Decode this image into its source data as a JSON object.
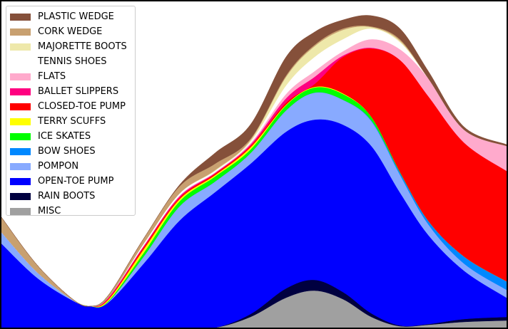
{
  "chart_data": {
    "type": "area",
    "stacked": true,
    "title": "",
    "xlabel": "",
    "ylabel": "",
    "axes_visible": false,
    "grid": false,
    "legend_position": "top-left",
    "xlim": [
      0,
      71
    ],
    "ylim": [
      0,
      458
    ],
    "x": [
      0,
      5,
      10,
      12.5,
      15,
      20,
      25,
      30,
      35,
      40,
      44,
      48,
      52,
      56,
      60,
      65,
      71
    ],
    "series": [
      {
        "name": "MISC",
        "color": "#a0a0a0",
        "values": [
          0,
          0,
          0,
          0,
          0,
          0,
          0,
          0,
          15,
          42,
          52,
          40,
          15,
          2,
          4,
          8,
          10
        ]
      },
      {
        "name": "RAIN BOOTS",
        "color": "#000040",
        "values": [
          0,
          0,
          0,
          0,
          0,
          0,
          0,
          0,
          4,
          13,
          15,
          10,
          5,
          1,
          1,
          4,
          5
        ]
      },
      {
        "name": "OPEN-TOE PUMP",
        "color": "#0000ff",
        "values": [
          118,
          70,
          38,
          30,
          35,
          90,
          150,
          190,
          211,
          220,
          225,
          235,
          235,
          187,
          125,
          68,
          27
        ]
      },
      {
        "name": "POMPON",
        "color": "#88aaff",
        "values": [
          16,
          8,
          1,
          0,
          1,
          10,
          20,
          15,
          15,
          30,
          38,
          35,
          35,
          25,
          15,
          10,
          11
        ]
      },
      {
        "name": "BOW SHOES",
        "color": "#0088ff",
        "values": [
          0,
          0,
          0,
          0,
          0,
          0,
          0,
          0,
          0,
          0,
          0,
          0,
          1,
          3,
          5,
          10,
          12
        ]
      },
      {
        "name": "ICE SKATES",
        "color": "#00ff00",
        "values": [
          0,
          0,
          0,
          0,
          1,
          5,
          7,
          7,
          5,
          7,
          7,
          8,
          5,
          1,
          0,
          0,
          0
        ]
      },
      {
        "name": "TERRY SCUFFS",
        "color": "#ffff00",
        "values": [
          0,
          0,
          0,
          0,
          2,
          5,
          3,
          2,
          3,
          1,
          1,
          1,
          0,
          0,
          0,
          0,
          0
        ]
      },
      {
        "name": "CLOSED-TOE PUMP",
        "color": "#ff0000",
        "values": [
          0,
          0,
          0,
          0,
          1,
          3,
          2,
          2,
          2,
          3,
          4,
          51,
          96,
          157,
          175,
          160,
          155
        ]
      },
      {
        "name": "BALLET SLIPPERS",
        "color": "#ff0080",
        "values": [
          0,
          0,
          0,
          0,
          2,
          2,
          2,
          1,
          2,
          6,
          10,
          2,
          1,
          0,
          0,
          0,
          0
        ]
      },
      {
        "name": "FLATS",
        "color": "#ffaacc",
        "values": [
          0,
          0,
          0,
          0,
          0,
          0,
          1,
          1,
          2,
          6,
          8,
          6,
          12,
          15,
          25,
          18,
          35
        ]
      },
      {
        "name": "TENNIS SHOES",
        "color": "#ffffff",
        "values": [
          0,
          0,
          0,
          0,
          0,
          3,
          3,
          2,
          2,
          12,
          20,
          17,
          15,
          10,
          0,
          0,
          0
        ]
      },
      {
        "name": "MAJORETTE BOOTS",
        "color": "#eee8aa",
        "values": [
          0,
          0,
          0,
          0,
          0,
          0,
          0,
          1,
          2,
          12,
          15,
          13,
          2,
          2,
          0,
          0,
          0
        ]
      },
      {
        "name": "CORK WEDGE",
        "color": "#c8a070",
        "values": [
          21,
          10,
          1,
          0,
          3,
          7,
          10,
          9,
          2,
          2,
          2,
          2,
          1,
          2,
          0,
          0,
          0
        ]
      },
      {
        "name": "PLASTIC WEDGE",
        "color": "#85503a",
        "values": [
          0,
          0,
          0,
          0,
          0,
          0,
          2,
          15,
          20,
          26,
          18,
          12,
          15,
          15,
          10,
          4,
          2
        ]
      }
    ],
    "legend_order": [
      "PLASTIC WEDGE",
      "CORK WEDGE",
      "MAJORETTE BOOTS",
      "TENNIS SHOES",
      "FLATS",
      "BALLET SLIPPERS",
      "CLOSED-TOE PUMP",
      "TERRY SCUFFS",
      "ICE SKATES",
      "BOW SHOES",
      "POMPON",
      "OPEN-TOE PUMP",
      "RAIN BOOTS",
      "MISC"
    ]
  }
}
